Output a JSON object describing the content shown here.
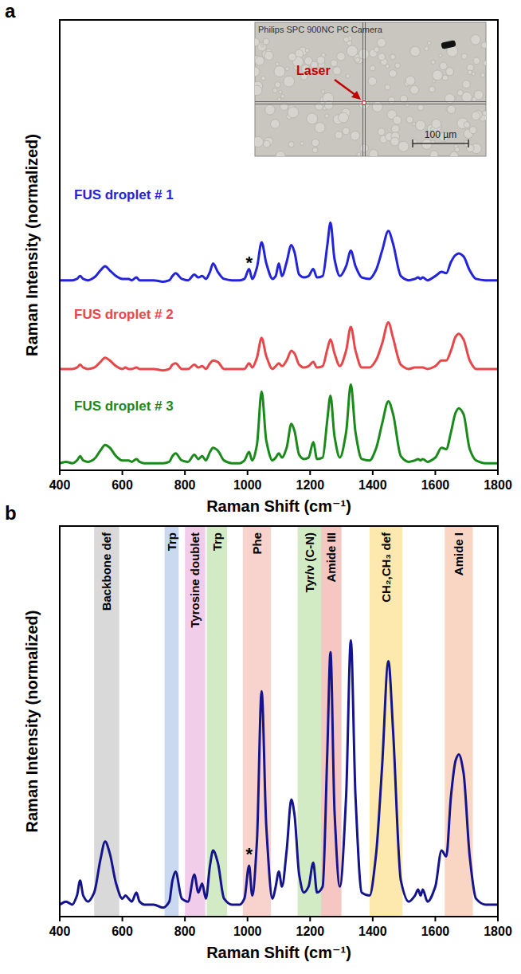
{
  "chart_data": [
    {
      "panel": "a",
      "type": "line",
      "x_label": "Raman Shift (cm⁻¹)",
      "y_label": "Raman Intensity (normalized)",
      "x": [
        400,
        420,
        440,
        455,
        465,
        475,
        490,
        510,
        530,
        545,
        560,
        580,
        600,
        610,
        620,
        630,
        645,
        655,
        670,
        700,
        730,
        750,
        760,
        770,
        790,
        810,
        830,
        843,
        855,
        867,
        880,
        890,
        905,
        925,
        950,
        975,
        990,
        1005,
        1015,
        1030,
        1045,
        1060,
        1080,
        1090,
        1100,
        1110,
        1125,
        1140,
        1150,
        1165,
        1180,
        1195,
        1210,
        1222,
        1240,
        1255,
        1265,
        1278,
        1295,
        1315,
        1330,
        1345,
        1365,
        1390,
        1410,
        1430,
        1450,
        1465,
        1490,
        1515,
        1535,
        1545,
        1553,
        1560,
        1575,
        1600,
        1620,
        1635,
        1650,
        1665,
        1675,
        1690,
        1710,
        1730,
        1760,
        1800
      ],
      "xlim": [
        400,
        1800
      ],
      "xticks": [
        400,
        600,
        800,
        1000,
        1200,
        1400,
        1600,
        1800
      ],
      "ylim": [
        0,
        3.2
      ],
      "tick_labels": "x",
      "series": [
        {
          "name": "FUS droplet # 1",
          "color": "#2323d9",
          "values": [
            1.35,
            1.35,
            1.35,
            1.36,
            1.38,
            1.36,
            1.35,
            1.37,
            1.42,
            1.45,
            1.42,
            1.38,
            1.36,
            1.36,
            1.36,
            1.35,
            1.37,
            1.35,
            1.35,
            1.35,
            1.34,
            1.35,
            1.38,
            1.4,
            1.36,
            1.35,
            1.39,
            1.37,
            1.38,
            1.36,
            1.41,
            1.47,
            1.41,
            1.36,
            1.35,
            1.35,
            1.36,
            1.43,
            1.36,
            1.44,
            1.62,
            1.47,
            1.36,
            1.38,
            1.47,
            1.38,
            1.48,
            1.6,
            1.55,
            1.39,
            1.37,
            1.38,
            1.43,
            1.37,
            1.38,
            1.6,
            1.76,
            1.5,
            1.38,
            1.45,
            1.56,
            1.45,
            1.37,
            1.36,
            1.42,
            1.56,
            1.7,
            1.61,
            1.38,
            1.35,
            1.36,
            1.37,
            1.36,
            1.37,
            1.35,
            1.38,
            1.41,
            1.4,
            1.48,
            1.53,
            1.54,
            1.52,
            1.42,
            1.36,
            1.35,
            1.35
          ]
        },
        {
          "name": "FUS droplet # 2",
          "color": "#e8474a",
          "values": [
            0.72,
            0.72,
            0.72,
            0.73,
            0.75,
            0.73,
            0.72,
            0.73,
            0.77,
            0.8,
            0.78,
            0.74,
            0.72,
            0.73,
            0.72,
            0.72,
            0.73,
            0.72,
            0.72,
            0.72,
            0.71,
            0.72,
            0.75,
            0.76,
            0.72,
            0.72,
            0.75,
            0.73,
            0.74,
            0.72,
            0.76,
            0.78,
            0.77,
            0.72,
            0.72,
            0.72,
            0.72,
            0.76,
            0.73,
            0.8,
            0.94,
            0.81,
            0.72,
            0.74,
            0.76,
            0.74,
            0.78,
            0.85,
            0.83,
            0.75,
            0.73,
            0.74,
            0.77,
            0.73,
            0.74,
            0.86,
            0.93,
            0.83,
            0.74,
            0.85,
            1.02,
            0.85,
            0.73,
            0.73,
            0.78,
            0.9,
            1.05,
            0.94,
            0.75,
            0.72,
            0.73,
            0.73,
            0.73,
            0.73,
            0.72,
            0.74,
            0.78,
            0.78,
            0.85,
            0.95,
            0.97,
            0.93,
            0.78,
            0.72,
            0.72,
            0.72
          ]
        },
        {
          "name": "FUS droplet # 3",
          "color": "#1a8a1a",
          "values": [
            0.05,
            0.06,
            0.05,
            0.07,
            0.1,
            0.07,
            0.06,
            0.08,
            0.14,
            0.18,
            0.16,
            0.1,
            0.07,
            0.07,
            0.07,
            0.06,
            0.08,
            0.06,
            0.05,
            0.05,
            0.05,
            0.06,
            0.1,
            0.12,
            0.07,
            0.06,
            0.11,
            0.08,
            0.1,
            0.07,
            0.13,
            0.16,
            0.14,
            0.07,
            0.05,
            0.05,
            0.07,
            0.13,
            0.07,
            0.18,
            0.56,
            0.21,
            0.07,
            0.09,
            0.12,
            0.09,
            0.16,
            0.33,
            0.28,
            0.11,
            0.08,
            0.09,
            0.2,
            0.08,
            0.09,
            0.36,
            0.53,
            0.24,
            0.09,
            0.27,
            0.61,
            0.27,
            0.08,
            0.07,
            0.15,
            0.33,
            0.49,
            0.4,
            0.1,
            0.06,
            0.07,
            0.08,
            0.07,
            0.08,
            0.06,
            0.09,
            0.16,
            0.15,
            0.27,
            0.41,
            0.44,
            0.4,
            0.15,
            0.07,
            0.05,
            0.05
          ]
        }
      ],
      "annotations": [
        {
          "text": "*",
          "x": 1005,
          "y": 1.5
        }
      ],
      "inset": {
        "camera": "Philips SPC 900NC PC Camera",
        "pointer": "Laser",
        "scale_bar": "100 µm"
      }
    },
    {
      "panel": "b",
      "type": "line",
      "x_label": "Raman Shift (cm⁻¹)",
      "y_label": "Raman Intensity (normalized)",
      "x": [
        400,
        420,
        440,
        455,
        465,
        475,
        490,
        510,
        530,
        545,
        560,
        580,
        600,
        610,
        620,
        630,
        645,
        655,
        670,
        700,
        730,
        750,
        760,
        770,
        790,
        810,
        830,
        843,
        855,
        867,
        880,
        890,
        905,
        925,
        950,
        975,
        990,
        1005,
        1015,
        1030,
        1045,
        1060,
        1080,
        1090,
        1100,
        1110,
        1125,
        1140,
        1150,
        1165,
        1180,
        1195,
        1210,
        1222,
        1240,
        1255,
        1265,
        1278,
        1295,
        1315,
        1330,
        1345,
        1365,
        1390,
        1410,
        1430,
        1450,
        1465,
        1490,
        1515,
        1535,
        1545,
        1553,
        1560,
        1575,
        1600,
        1620,
        1635,
        1650,
        1665,
        1675,
        1690,
        1710,
        1730,
        1760,
        1800
      ],
      "xlim": [
        400,
        1800
      ],
      "xticks": [
        400,
        600,
        800,
        1000,
        1200,
        1400,
        1600,
        1800
      ],
      "ylim": [
        0,
        1.3
      ],
      "tick_labels": "x",
      "series": [
        {
          "color": "#14148c",
          "values": [
            0.04,
            0.05,
            0.04,
            0.07,
            0.12,
            0.07,
            0.05,
            0.08,
            0.19,
            0.25,
            0.21,
            0.11,
            0.06,
            0.07,
            0.06,
            0.05,
            0.08,
            0.05,
            0.04,
            0.04,
            0.03,
            0.05,
            0.12,
            0.15,
            0.06,
            0.05,
            0.14,
            0.08,
            0.11,
            0.06,
            0.17,
            0.22,
            0.18,
            0.06,
            0.04,
            0.04,
            0.06,
            0.17,
            0.07,
            0.25,
            0.75,
            0.3,
            0.06,
            0.1,
            0.15,
            0.1,
            0.22,
            0.39,
            0.34,
            0.14,
            0.08,
            0.1,
            0.18,
            0.08,
            0.1,
            0.55,
            0.88,
            0.35,
            0.1,
            0.4,
            0.92,
            0.4,
            0.08,
            0.07,
            0.2,
            0.5,
            0.85,
            0.62,
            0.12,
            0.05,
            0.07,
            0.09,
            0.07,
            0.09,
            0.05,
            0.1,
            0.22,
            0.2,
            0.4,
            0.52,
            0.54,
            0.48,
            0.2,
            0.06,
            0.04,
            0.04
          ]
        }
      ],
      "bands": [
        {
          "label": "Backbone def",
          "xlim": [
            510,
            590
          ],
          "color": "#d9d9d9"
        },
        {
          "label": "Trp",
          "xlim": [
            735,
            780
          ],
          "color": "#cad8f0"
        },
        {
          "label": "Tyrosine doublet",
          "xlim": [
            800,
            865
          ],
          "color": "#f2cdea"
        },
        {
          "label": "Trp",
          "xlim": [
            870,
            935
          ],
          "color": "#d3ebc4"
        },
        {
          "label": "Phe",
          "xlim": [
            985,
            1075
          ],
          "color": "#f8d2cc"
        },
        {
          "label": "Tyr/ν (C-N)",
          "xlim": [
            1160,
            1235
          ],
          "color": "#d3ebc4"
        },
        {
          "label": "Amide III",
          "xlim": [
            1235,
            1300
          ],
          "color": "#f6c6c3"
        },
        {
          "label": "CH₂,CH₃ def",
          "xlim": [
            1390,
            1495
          ],
          "color": "#fde9ad"
        },
        {
          "label": "Amide I",
          "xlim": [
            1630,
            1720
          ],
          "color": "#f9d6c4"
        }
      ],
      "annotations": [
        {
          "text": "*",
          "x": 1005,
          "y": 0.22
        }
      ]
    }
  ]
}
